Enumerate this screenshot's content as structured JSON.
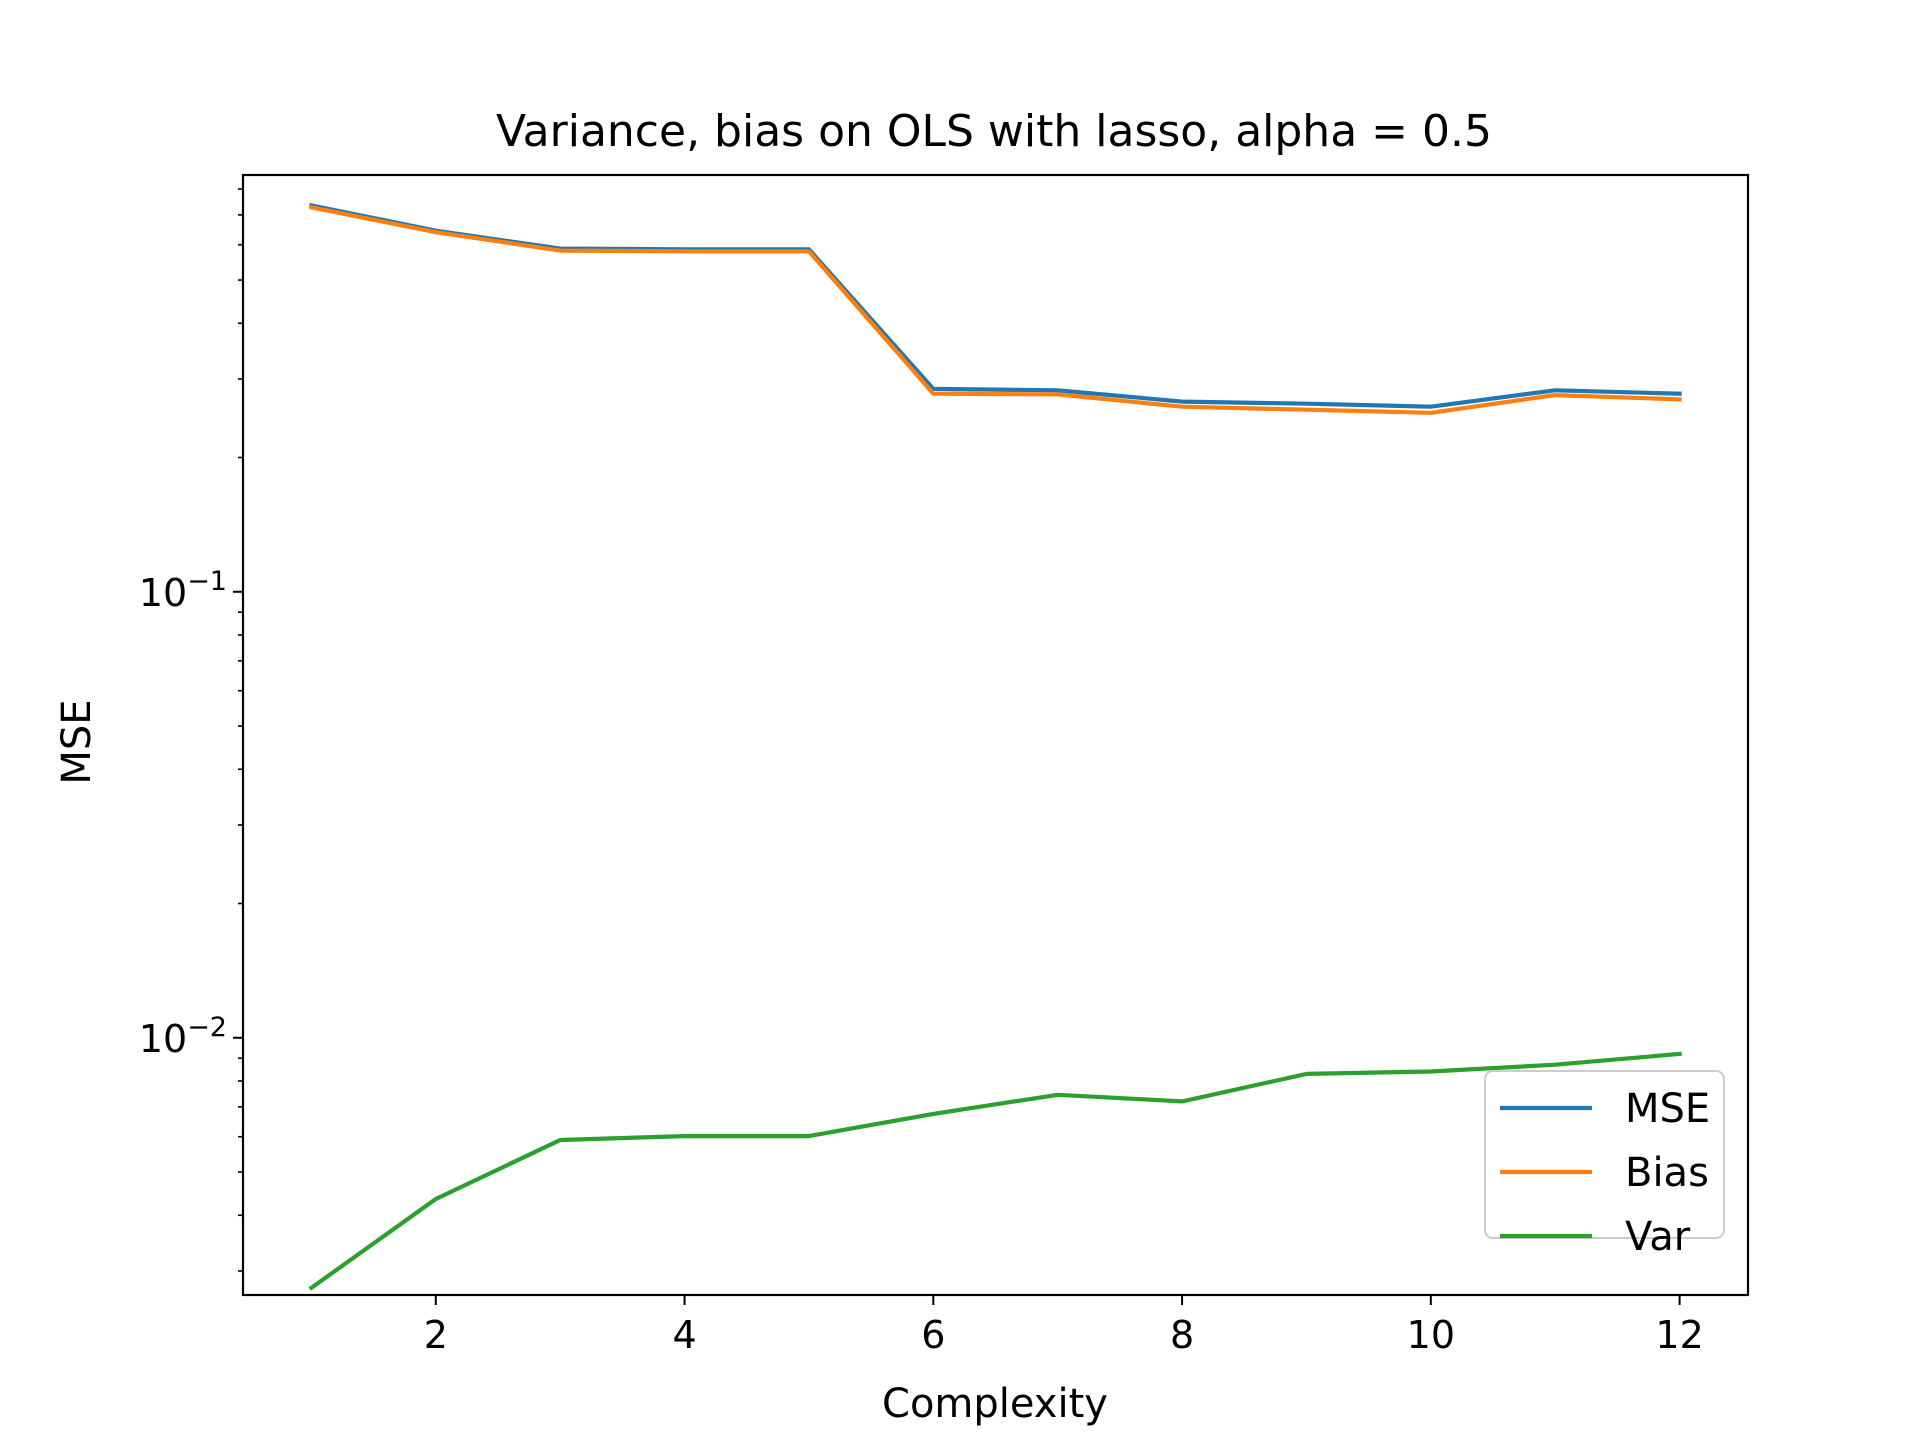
{
  "chart_data": {
    "type": "line",
    "title": "Variance, bias on OLS with lasso, alpha = 0.5",
    "xlabel": "Complexity",
    "ylabel": "MSE",
    "yscale": "log",
    "xlim": [
      0.45,
      12.55
    ],
    "ylim": [
      0.00265,
      0.86
    ],
    "xticks": [
      2,
      4,
      6,
      8,
      10,
      12
    ],
    "yticks": [
      {
        "value": 0.1,
        "base": "10",
        "exponent": "−1"
      },
      {
        "value": 0.01,
        "base": "10",
        "exponent": "−2"
      }
    ],
    "grid": false,
    "legend_position": "lower-right",
    "x": [
      1,
      2,
      3,
      4,
      5,
      6,
      7,
      8,
      9,
      10,
      11,
      12
    ],
    "series": [
      {
        "name": "MSE",
        "color": "#1f77b4",
        "values": [
          0.735,
          0.645,
          0.588,
          0.586,
          0.586,
          0.285,
          0.283,
          0.267,
          0.264,
          0.26,
          0.283,
          0.278
        ]
      },
      {
        "name": "Bias",
        "color": "#ff7f0e",
        "values": [
          0.728,
          0.64,
          0.582,
          0.58,
          0.58,
          0.278,
          0.277,
          0.26,
          0.256,
          0.252,
          0.276,
          0.27
        ]
      },
      {
        "name": "Var",
        "color": "#2ca02c",
        "values": [
          0.00275,
          0.00435,
          0.0059,
          0.00602,
          0.00602,
          0.00675,
          0.00745,
          0.0072,
          0.0083,
          0.0084,
          0.0087,
          0.0092
        ]
      }
    ]
  }
}
